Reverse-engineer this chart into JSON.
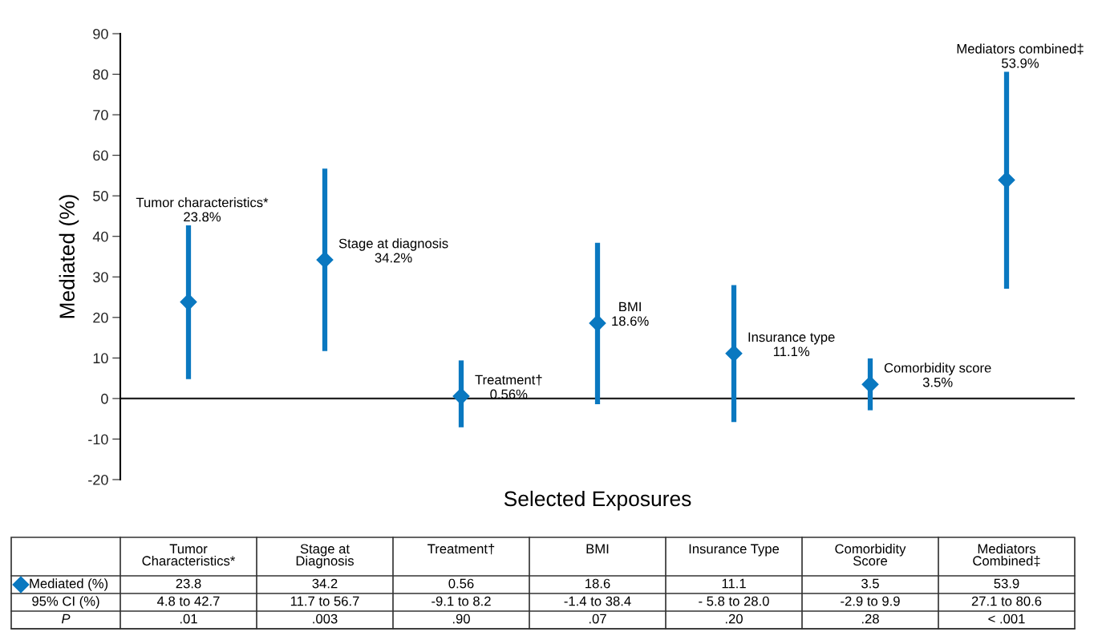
{
  "chart_data": {
    "type": "scatter",
    "categories": [
      "Tumor\nCharacteristics*",
      "Stage at\nDiagnosis",
      "Treatment†",
      "BMI",
      "Insurance Type",
      "Comorbidity\nScore",
      "Mediators\nCombined‡"
    ],
    "series": [
      {
        "name": "Mediated (%)",
        "color": "#0a78c0",
        "values": [
          23.8,
          34.2,
          0.56,
          18.6,
          11.1,
          3.5,
          53.9
        ],
        "errors": [
          [
            4.8,
            42.7
          ],
          [
            11.7,
            56.7
          ],
          [
            -7.1,
            9.4
          ],
          [
            -1.4,
            38.4
          ],
          [
            -5.8,
            28.0
          ],
          [
            -2.9,
            9.9
          ],
          [
            27.1,
            80.6
          ]
        ]
      }
    ],
    "ylabel": "Mediated (%)",
    "xlabel": "Selected Exposures",
    "ylim": [
      -20,
      90
    ],
    "yticks": [
      {
        "value": -20,
        "label": "-20"
      },
      {
        "value": -10,
        "label": "-10"
      },
      0,
      10,
      20,
      30,
      40,
      50,
      60,
      70,
      80,
      90
    ],
    "ref_lines": [
      {
        "axis": "y",
        "value": 0,
        "color": "#222222"
      }
    ],
    "marker": "diamond",
    "grid": false,
    "legend": "bottom",
    "data_labels": true,
    "tick_labels": "y",
    "annotations": [
      {
        "text": "Tumor characteristics*\n23.8%",
        "x": "Tumor\nCharacteristics*",
        "y": 42.7
      },
      {
        "text": "Stage at diagnosis\n34.2%",
        "x": "Stage at\nDiagnosis",
        "y": 34.2
      },
      {
        "text": "Treatment†\n0.56%",
        "x": "Treatment†",
        "y": 0.56
      },
      {
        "text": "BMI\n18.6%",
        "x": "BMI",
        "y": 18.6
      },
      {
        "text": "Insurance type\n11.1%",
        "x": "Insurance Type",
        "y": 11.1
      },
      {
        "text": "Comorbidity score\n3.5%",
        "x": "Comorbidity\nScore",
        "y": 3.5
      },
      {
        "text": "Mediators combined‡\n53.9%",
        "x": "Mediators\nCombined‡",
        "y": 80.6
      },
      "95% CI (%)",
      "4.8 to 42.7",
      "11.7 to 56.7",
      "-9.1 to 8.2",
      "-1.4 to 38.4",
      "- 5.8 to 28.0",
      "-2.9 to 9.9",
      "27.1 to 80.6",
      "P",
      ".01",
      ".003",
      ".90",
      ".07",
      ".20",
      ".28",
      "< .001"
    ]
  }
}
